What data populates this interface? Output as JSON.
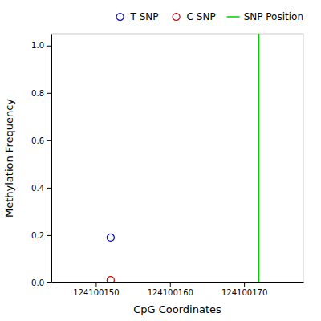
{
  "chart_data": {
    "type": "scatter",
    "xlabel": "CpG Coordinates",
    "ylabel": "Methylation Frequency",
    "series": [
      {
        "name": "T SNP",
        "color": "#0000cc",
        "x": [
          124100152
        ],
        "values": [
          0.19
        ]
      },
      {
        "name": "C SNP",
        "color": "#cc0000",
        "x": [
          124100152
        ],
        "values": [
          0.01
        ]
      },
      {
        "name": "SNP Position",
        "type": "vline",
        "color": "#00cc00",
        "x": [
          124100172
        ]
      }
    ],
    "marker": "circle",
    "xlim": [
      124100144,
      124100178
    ],
    "ylim": [
      0.0,
      1.05
    ],
    "xticks": [
      124100150,
      124100160,
      124100170
    ],
    "yticks": [
      {
        "value": 0,
        "label": "0.0"
      },
      0.2,
      0.4,
      0.6,
      0.8,
      {
        "value": 1,
        "label": "1.0"
      }
    ],
    "grid": false,
    "legend": "upper right"
  }
}
